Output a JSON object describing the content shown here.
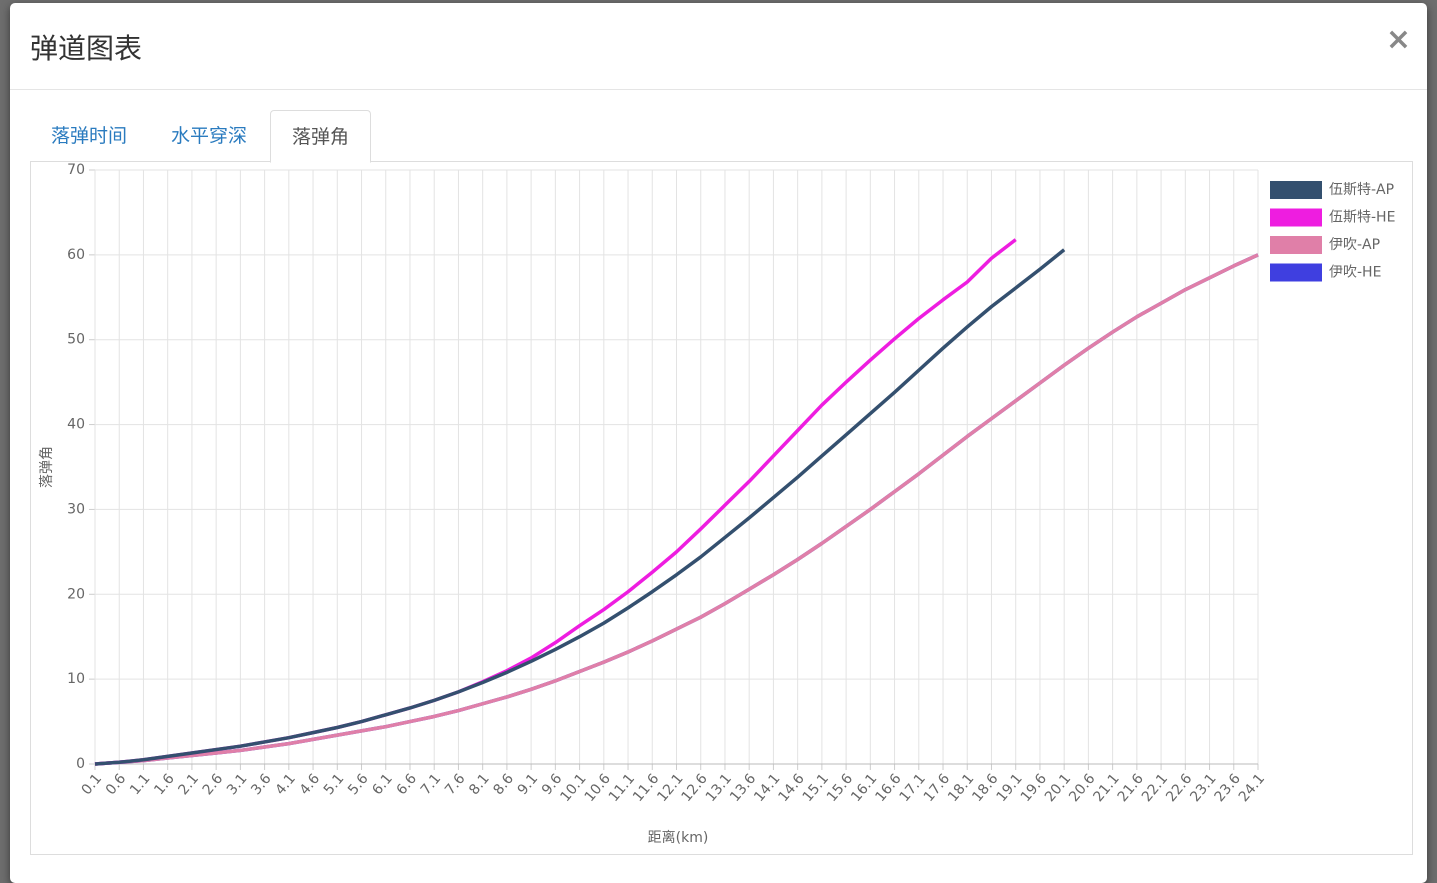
{
  "modal": {
    "title": "弹道图表",
    "close": "×",
    "tabs": [
      "落弹时间",
      "水平穿深",
      "落弹角"
    ]
  },
  "chart_data": {
    "type": "line",
    "x_label": "距离(km)",
    "y_label": "落弹角",
    "grid": true,
    "legend": "right",
    "x": [
      0.1,
      0.6,
      1.1,
      1.6,
      2.1,
      2.6,
      3.1,
      3.6,
      4.1,
      4.6,
      5.1,
      5.6,
      6.1,
      6.6,
      7.1,
      7.6,
      8.1,
      8.6,
      9.1,
      9.6,
      10.1,
      10.6,
      11.1,
      11.6,
      12.1,
      12.6,
      13.1,
      13.6,
      14.1,
      14.6,
      15.1,
      15.6,
      16.1,
      16.6,
      17.1,
      17.6,
      18.1,
      18.6,
      19.1,
      19.6,
      20.1,
      20.6,
      21.1,
      21.6,
      22.1,
      22.6,
      23.1,
      23.6,
      24.1
    ],
    "xlim": [
      0.1,
      24.1
    ],
    "xticks": [
      0.1,
      0.6,
      1.1,
      1.6,
      2.1,
      2.6,
      3.1,
      3.6,
      4.1,
      4.6,
      5.1,
      5.6,
      6.1,
      6.6,
      7.1,
      7.6,
      8.1,
      8.6,
      9.1,
      9.6,
      10.1,
      10.6,
      11.1,
      11.6,
      12.1,
      12.6,
      13.1,
      13.6,
      14.1,
      14.6,
      15.1,
      15.6,
      16.1,
      16.6,
      17.1,
      17.6,
      18.1,
      18.6,
      19.1,
      19.6,
      20.1,
      20.6,
      21.1,
      21.6,
      22.1,
      22.6,
      23.1,
      23.6,
      24.1
    ],
    "ylim": [
      0,
      70
    ],
    "yticks": [
      0,
      10,
      20,
      30,
      40,
      50,
      60,
      70
    ],
    "series": [
      {
        "name": "伍斯特-AP",
        "color": "#34506f",
        "values": [
          0,
          0.2,
          0.5,
          0.9,
          1.3,
          1.7,
          2.1,
          2.6,
          3.1,
          3.7,
          4.3,
          5.0,
          5.8,
          6.6,
          7.5,
          8.5,
          9.6,
          10.8,
          12.1,
          13.5,
          15.0,
          16.6,
          18.4,
          20.3,
          22.3,
          24.4,
          26.7,
          29.0,
          31.4,
          33.8,
          36.3,
          38.8,
          41.3,
          43.8,
          46.4,
          49.0,
          51.5,
          53.9,
          56.1,
          58.3,
          60.6,
          null,
          null,
          null,
          null,
          null,
          null,
          null,
          null
        ]
      },
      {
        "name": "伍斯特-HE",
        "color": "#ee1de0",
        "values": [
          0,
          0.2,
          0.5,
          0.9,
          1.3,
          1.7,
          2.1,
          2.6,
          3.1,
          3.7,
          4.3,
          5.0,
          5.8,
          6.6,
          7.5,
          8.5,
          9.7,
          11.0,
          12.5,
          14.3,
          16.3,
          18.2,
          20.3,
          22.6,
          25.0,
          27.7,
          30.5,
          33.3,
          36.3,
          39.3,
          42.3,
          45.0,
          47.6,
          50.1,
          52.5,
          54.7,
          56.8,
          59.6,
          61.8,
          null,
          null,
          null,
          null,
          null,
          null,
          null,
          null,
          null,
          null
        ]
      },
      {
        "name": "伊吹-AP",
        "color": "#e07fa8",
        "values": [
          0,
          0.2,
          0.4,
          0.7,
          1.0,
          1.3,
          1.6,
          2.0,
          2.4,
          2.9,
          3.4,
          3.9,
          4.4,
          5.0,
          5.6,
          6.3,
          7.1,
          7.9,
          8.8,
          9.8,
          10.9,
          12.0,
          13.2,
          14.5,
          15.9,
          17.3,
          18.9,
          20.6,
          22.3,
          24.1,
          26.0,
          28.0,
          30.0,
          32.1,
          34.2,
          36.4,
          38.6,
          40.7,
          42.8,
          44.9,
          47.0,
          49.0,
          50.9,
          52.7,
          54.3,
          55.9,
          57.3,
          58.7,
          60.0
        ]
      },
      {
        "name": "伊吹-HE",
        "color": "#3f3fe0",
        "values": [
          0,
          0.2,
          0.4,
          0.7,
          1.0,
          1.3,
          1.6,
          2.0,
          2.4,
          2.9,
          3.4,
          3.9,
          4.4,
          5.0,
          5.6,
          6.3,
          7.1,
          7.9,
          8.8,
          9.8,
          10.9,
          12.0,
          13.2,
          14.5,
          15.9,
          17.3,
          18.9,
          20.6,
          22.3,
          24.1,
          26.0,
          28.0,
          30.0,
          32.1,
          34.2,
          36.4,
          38.6,
          40.7,
          42.8,
          44.9,
          47.0,
          49.0,
          50.9,
          52.7,
          54.3,
          55.9,
          57.3,
          58.7,
          60.0
        ]
      }
    ]
  }
}
